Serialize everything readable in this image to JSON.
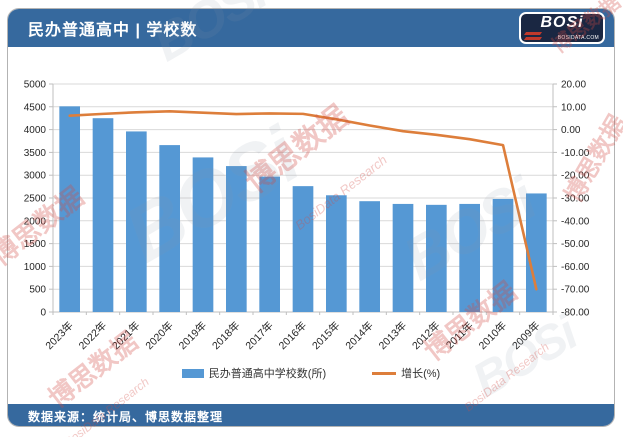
{
  "header": {
    "title": "民办普通高中 | 学校数",
    "logo_text": "BOSi",
    "logo_sub": "BOSIDATA.COM"
  },
  "footer": {
    "source_text": "数据来源：统计局、博思数据整理"
  },
  "watermarks": {
    "cn": "博思数据",
    "en": "BosiData Research",
    "logo": "BOSi"
  },
  "colors": {
    "header_bg": "#36699E",
    "bar": "#5598D4",
    "line": "#DD7E3B",
    "grid": "#D9D9D9",
    "axis": "#BFBFBF",
    "axis_text": "#262626"
  },
  "chart_data": {
    "type": "bar",
    "title": "民办普通高中 | 学校数",
    "categories": [
      "2023年",
      "2022年",
      "2021年",
      "2020年",
      "2019年",
      "2018年",
      "2017年",
      "2016年",
      "2015年",
      "2014年",
      "2013年",
      "2012年",
      "2011年",
      "2010年",
      "2009年"
    ],
    "series": [
      {
        "name": "民办普通高中学校数(所)",
        "type": "bar",
        "axis": "left",
        "color": "#5598D4",
        "values": [
          4510,
          4250,
          3960,
          3660,
          3390,
          3200,
          2970,
          2760,
          2560,
          2430,
          2370,
          2350,
          2370,
          2480,
          2600
        ]
      },
      {
        "name": "增长(%)",
        "type": "line",
        "axis": "right",
        "color": "#DD7E3B",
        "values": [
          6.1,
          6.9,
          7.6,
          8.0,
          7.4,
          6.8,
          7.1,
          6.9,
          4.5,
          1.8,
          -0.7,
          -2.3,
          -4.2,
          -6.8,
          -70.0
        ]
      }
    ],
    "left_axis": {
      "min": 0,
      "max": 5000,
      "step": 500,
      "format": "int"
    },
    "right_axis": {
      "min": -80,
      "max": 20,
      "step": 10,
      "format": "2dp"
    },
    "legend": [
      "民办普通高中学校数(所)",
      "增长(%)"
    ],
    "legend_position": "bottom",
    "grid": true,
    "xlabel": "",
    "ylabel": ""
  }
}
